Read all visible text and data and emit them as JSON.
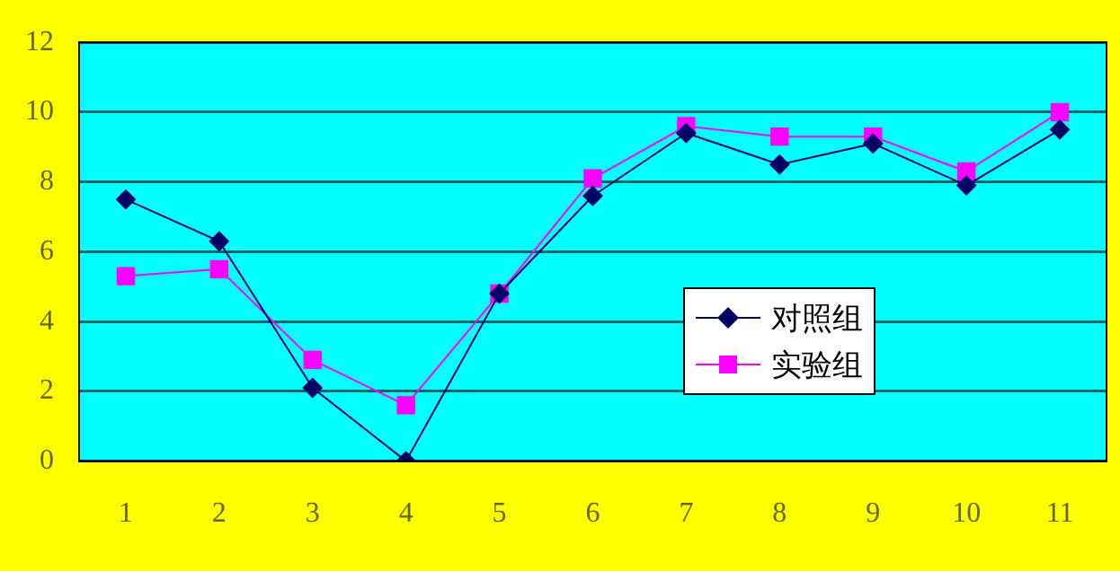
{
  "chart_data": {
    "type": "line",
    "categories": [
      "1",
      "2",
      "3",
      "4",
      "5",
      "6",
      "7",
      "8",
      "9",
      "10",
      "11"
    ],
    "series": [
      {
        "name": "对照组",
        "color": "#000066",
        "marker": "diamond",
        "values": [
          7.5,
          6.3,
          2.1,
          0,
          4.8,
          7.6,
          9.4,
          8.5,
          9.1,
          7.9,
          9.5
        ]
      },
      {
        "name": "实验组",
        "color": "#ff00ff",
        "marker": "square",
        "values": [
          5.3,
          5.5,
          2.9,
          1.6,
          4.8,
          8.1,
          9.6,
          9.3,
          9.3,
          8.3,
          10.0
        ]
      }
    ],
    "ylim": [
      0,
      12
    ],
    "yticks": [
      0,
      2,
      4,
      6,
      8,
      10,
      12
    ],
    "grid": "y",
    "legend": "center right",
    "line_style": "solid"
  }
}
